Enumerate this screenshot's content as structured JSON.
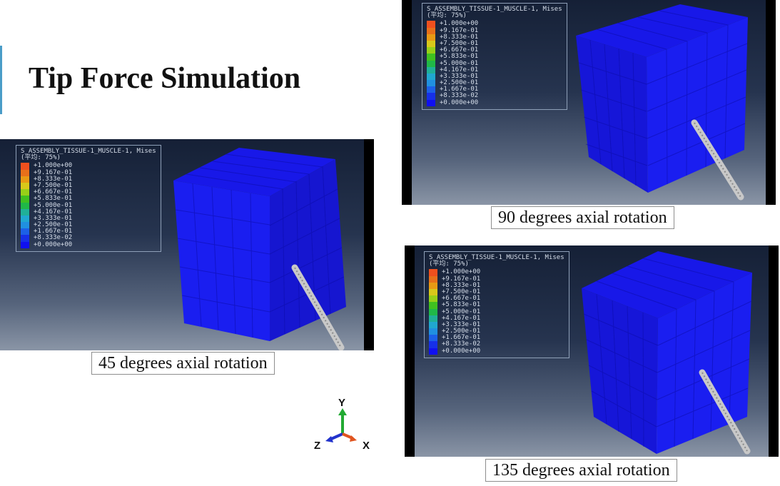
{
  "slide": {
    "title": "Tip Force Simulation"
  },
  "legend": {
    "title": "S_ASSEMBLY_TISSUE-1_MUSCLE-1, Mises",
    "subtitle": "(平均: 75%)",
    "entries": [
      {
        "label": "+1.000e+00",
        "color": "#f0501e"
      },
      {
        "label": "+9.167e-01",
        "color": "#e8701a"
      },
      {
        "label": "+8.333e-01",
        "color": "#e89a14"
      },
      {
        "label": "+7.500e-01",
        "color": "#d8c81a"
      },
      {
        "label": "+6.667e-01",
        "color": "#98d018"
      },
      {
        "label": "+5.833e-01",
        "color": "#40c020"
      },
      {
        "label": "+5.000e-01",
        "color": "#20b848"
      },
      {
        "label": "+4.167e-01",
        "color": "#20b098"
      },
      {
        "label": "+3.333e-01",
        "color": "#20a8d0"
      },
      {
        "label": "+2.500e-01",
        "color": "#2090e0"
      },
      {
        "label": "+1.667e-01",
        "color": "#1c60e8"
      },
      {
        "label": "+8.333e-02",
        "color": "#1630e8"
      },
      {
        "label": "+0.000e+00",
        "color": "#1010f0"
      }
    ]
  },
  "panels": {
    "p45": {
      "caption": "45 degrees axial rotation"
    },
    "p90": {
      "caption": "90 degrees axial rotation"
    },
    "p135": {
      "caption": "135 degrees axial rotation"
    }
  },
  "axes": {
    "y": "Y",
    "z": "Z",
    "x": "X",
    "y_color": "#22aa33",
    "z_color": "#2233cc",
    "x_color": "#e05520"
  }
}
